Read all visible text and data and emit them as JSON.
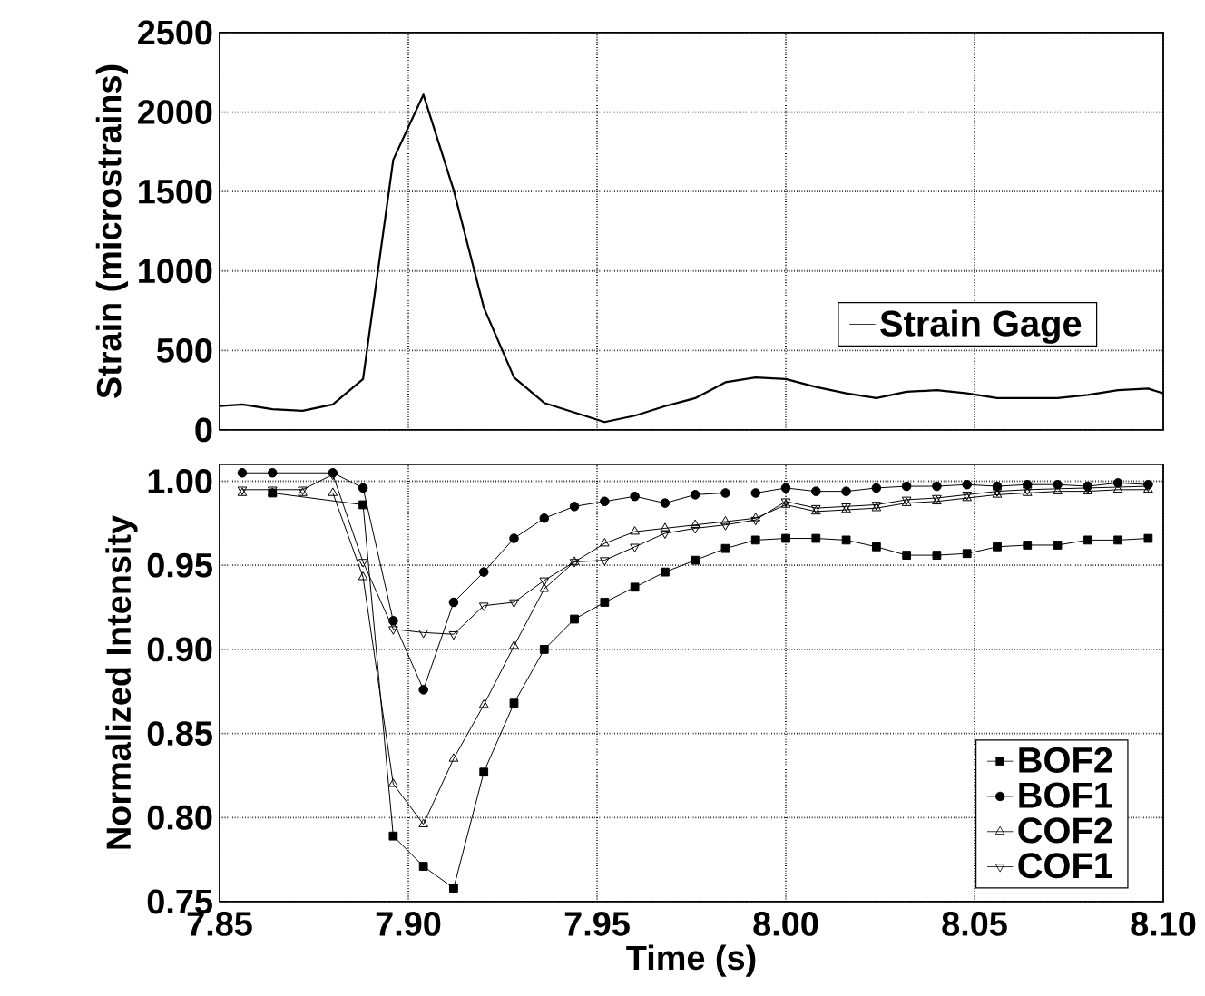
{
  "chart_data": [
    {
      "type": "line",
      "ylabel": "Strain (microstrains)",
      "xlim": [
        7.85,
        8.1
      ],
      "ylim": [
        0,
        2500
      ],
      "xticks": [
        7.85,
        7.9,
        7.95,
        8.0,
        8.05,
        8.1
      ],
      "yticks": [
        0,
        500,
        1000,
        1500,
        2000,
        2500
      ],
      "tick_labels": "y",
      "grid": true,
      "legend": "right",
      "marker": "none",
      "series": [
        {
          "name": "Strain Gage",
          "color": "#000000",
          "x": [
            7.85,
            7.856,
            7.864,
            7.872,
            7.88,
            7.888,
            7.896,
            7.904,
            7.912,
            7.92,
            7.928,
            7.936,
            7.952,
            7.96,
            7.968,
            7.976,
            7.984,
            7.992,
            8.0,
            8.008,
            8.016,
            8.024,
            8.032,
            8.04,
            8.048,
            8.056,
            8.064,
            8.072,
            8.08,
            8.088,
            8.096,
            8.1
          ],
          "values": [
            150,
            160,
            130,
            120,
            160,
            320,
            1700,
            2110,
            1510,
            770,
            330,
            170,
            50,
            90,
            150,
            200,
            300,
            330,
            320,
            270,
            230,
            200,
            240,
            250,
            230,
            200,
            200,
            200,
            220,
            250,
            260,
            230
          ]
        }
      ]
    },
    {
      "type": "line",
      "xlabel": "Time (s)",
      "ylabel": "Normalized Intensity",
      "x": [
        7.856,
        7.864,
        7.872,
        7.88,
        7.888,
        7.896,
        7.904,
        7.912,
        7.92,
        7.928,
        7.936,
        7.944,
        7.952,
        7.96,
        7.968,
        7.976,
        7.984,
        7.992,
        8.0,
        8.008,
        8.016,
        8.024,
        8.032,
        8.04,
        8.048,
        8.056,
        8.064,
        8.072,
        8.08,
        8.088,
        8.096
      ],
      "xlim": [
        7.85,
        8.1
      ],
      "ylim": [
        0.75,
        1.01
      ],
      "xticks": [
        {
          "value": 7.85,
          "label": "7.85"
        },
        {
          "value": 7.9,
          "label": "7.90"
        },
        {
          "value": 7.95,
          "label": "7.95"
        },
        {
          "value": 8.0,
          "label": "8.00"
        },
        {
          "value": 8.05,
          "label": "8.05"
        },
        {
          "value": 8.1,
          "label": "8.10"
        }
      ],
      "yticks": [
        {
          "value": 0.75,
          "label": "0.75"
        },
        {
          "value": 0.8,
          "label": "0.80"
        },
        {
          "value": 0.85,
          "label": "0.85"
        },
        {
          "value": 0.9,
          "label": "0.90"
        },
        {
          "value": 0.95,
          "label": "0.95"
        },
        {
          "value": 1.0,
          "label": "1.00"
        }
      ],
      "grid": true,
      "legend": "bottom right",
      "series": [
        {
          "name": "BOF2",
          "color": "#000000",
          "marker": "square",
          "values": [
            null,
            0.993,
            null,
            null,
            0.986,
            0.789,
            0.771,
            0.758,
            0.827,
            0.868,
            0.9,
            0.918,
            0.928,
            0.937,
            0.946,
            0.953,
            0.96,
            0.965,
            0.966,
            0.966,
            0.965,
            0.961,
            0.956,
            0.956,
            0.957,
            0.961,
            0.962,
            0.962,
            0.965,
            0.965,
            0.966
          ]
        },
        {
          "name": "BOF1",
          "color": "#000000",
          "marker": "circle",
          "values": [
            1.005,
            1.005,
            null,
            1.005,
            0.996,
            0.917,
            0.876,
            0.928,
            0.946,
            0.966,
            0.978,
            0.985,
            0.988,
            0.991,
            0.987,
            0.992,
            0.993,
            0.993,
            0.996,
            0.994,
            0.994,
            0.996,
            0.997,
            0.997,
            0.998,
            0.997,
            0.998,
            0.998,
            0.997,
            0.999,
            0.998
          ]
        },
        {
          "name": "COF2",
          "color": "#000000",
          "marker": "triangle",
          "values": [
            0.993,
            0.993,
            0.993,
            0.993,
            0.943,
            0.82,
            0.796,
            0.835,
            0.867,
            0.902,
            0.936,
            0.952,
            0.963,
            0.97,
            0.972,
            0.974,
            0.976,
            0.978,
            0.986,
            0.982,
            0.983,
            0.984,
            0.987,
            0.988,
            0.99,
            0.992,
            0.993,
            0.994,
            0.994,
            0.995,
            0.995
          ]
        },
        {
          "name": "COF1",
          "color": "#000000",
          "marker": "triangle-down",
          "values": [
            0.995,
            0.995,
            0.995,
            1.004,
            0.952,
            0.912,
            0.91,
            0.909,
            0.926,
            0.928,
            0.941,
            0.952,
            0.953,
            0.961,
            0.969,
            0.972,
            0.974,
            0.977,
            0.988,
            0.984,
            0.985,
            0.986,
            0.989,
            0.99,
            0.992,
            0.994,
            0.995,
            null,
            0.996,
            null,
            0.997
          ]
        }
      ]
    }
  ]
}
